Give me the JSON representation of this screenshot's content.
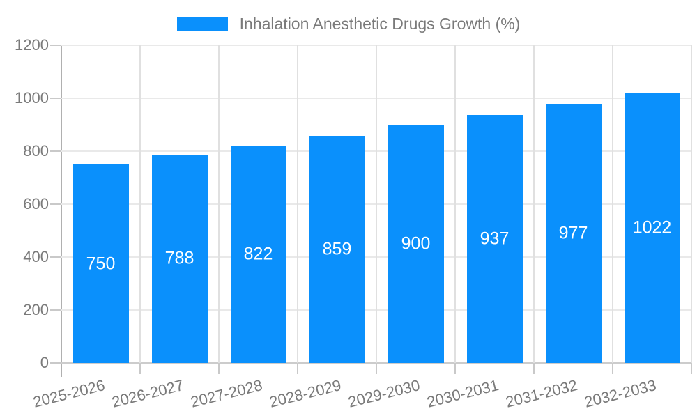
{
  "chart_data": {
    "type": "bar",
    "title": "Inhalation Anesthetic Drugs Growth (%)",
    "legend": {
      "label": "Inhalation Anesthetic Drugs Growth (%)",
      "position": "top-center"
    },
    "categories": [
      "2025-2026",
      "2026-2027",
      "2027-2028",
      "2028-2029",
      "2029-2030",
      "2030-2031",
      "2031-2032",
      "2032-2033"
    ],
    "series": [
      {
        "name": "Inhalation Anesthetic Drugs Growth (%)",
        "values": [
          750,
          788,
          822,
          859,
          900,
          937,
          977,
          1022
        ]
      }
    ],
    "xlabel": "",
    "ylabel": "",
    "ylim": [
      0,
      1200
    ],
    "yticks": [
      0,
      200,
      400,
      600,
      800,
      1000,
      1200
    ],
    "grid": true,
    "value_labels_position": "inside-center",
    "x_label_rotation_deg": -14,
    "colors": {
      "bar": "#0a90fc",
      "value_label": "#ffffff",
      "axis_text": "#7a7a7a",
      "gridline_horizontal": "#e9e9e9",
      "gridline_vertical": "#e0e0e0",
      "baseline": "#cccccc",
      "axis_line": "#b0b0b0",
      "tick": "#c9c9c9",
      "background": "#ffffff"
    }
  }
}
